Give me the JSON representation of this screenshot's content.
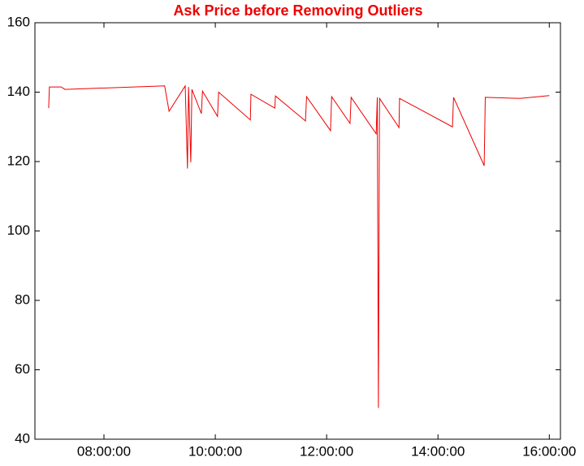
{
  "chart_data": {
    "type": "line",
    "title": "Ask Price before Removing Outliers",
    "x": [
      7.007,
      7.02,
      7.23,
      7.3,
      9.09,
      9.17,
      9.46,
      9.5,
      9.52,
      9.56,
      9.58,
      9.75,
      9.77,
      10.04,
      10.06,
      10.63,
      10.64,
      11.07,
      11.08,
      11.62,
      11.64,
      12.07,
      12.09,
      12.42,
      12.44,
      12.89,
      12.91,
      12.93,
      12.95,
      13.3,
      13.31,
      14.26,
      14.28,
      14.83,
      14.85,
      15.47,
      16.0
    ],
    "series": [
      {
        "color": "#ee0000",
        "values": [
          135.4,
          141.5,
          141.5,
          140.8,
          141.8,
          134.5,
          141.8,
          118.0,
          141.5,
          119.8,
          140.8,
          133.8,
          140.3,
          133.0,
          140.0,
          132.0,
          139.4,
          135.4,
          138.9,
          131.7,
          138.7,
          128.9,
          138.7,
          131.0,
          138.5,
          128.0,
          138.5,
          49.0,
          138.2,
          129.8,
          138.2,
          130.0,
          138.5,
          118.8,
          138.5,
          138.2,
          139.0
        ]
      }
    ],
    "xlim": [
      6.76,
      16.2
    ],
    "xticks": [
      {
        "value": 8,
        "label": "08:00:00"
      },
      {
        "value": 10,
        "label": "10:00:00"
      },
      {
        "value": 12,
        "label": "12:00:00"
      },
      {
        "value": 14,
        "label": "14:00:00"
      },
      {
        "value": 16,
        "label": "16:00:00"
      }
    ],
    "ylim": [
      40,
      160
    ],
    "yticks": [
      40,
      60,
      80,
      100,
      120,
      140,
      160
    ],
    "grid": false
  }
}
